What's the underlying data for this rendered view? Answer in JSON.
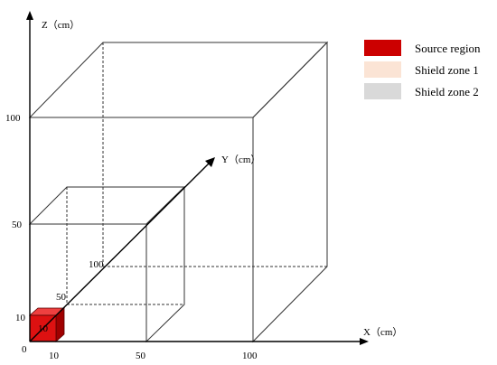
{
  "axes": {
    "x_title": "X（cm）",
    "y_title": "Y（cm）",
    "z_title": "Z（cm）",
    "origin": "0",
    "x_ticks": [
      "10",
      "50",
      "100"
    ],
    "y_ticks": [
      "10",
      "50",
      "100"
    ],
    "z_ticks": [
      "10",
      "50",
      "100"
    ]
  },
  "legend": {
    "items": [
      {
        "label": "Source region",
        "color": "#cc0000"
      },
      {
        "label": "Shield zone 1",
        "color": "#fbe4d5"
      },
      {
        "label": "Shield zone 2",
        "color": "#d9d9d9"
      }
    ]
  },
  "colors": {
    "shield2_front": "#d9d9d9",
    "shield2_top": "#e6e6e6",
    "shield2_side": "#c8c8c8",
    "shield1_front": "#fbd3b5",
    "shield1_top": "#fde7d6",
    "shield1_side": "#f5b48c",
    "source_front": "#dd1111",
    "source_top": "#ee4040",
    "source_side": "#a00000"
  }
}
